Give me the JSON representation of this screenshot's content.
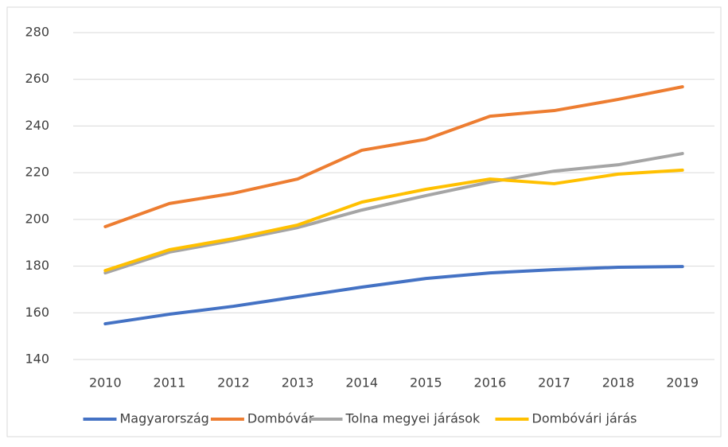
{
  "chart_data": {
    "type": "line",
    "x": [
      "2010",
      "2011",
      "2012",
      "2013",
      "2014",
      "2015",
      "2016",
      "2017",
      "2018",
      "2019"
    ],
    "series": [
      {
        "name": "Magyarország",
        "color": "#4472c4",
        "values": [
          155.3,
          159.4,
          162.8,
          166.9,
          171,
          174.7,
          177.1,
          178.5,
          179.5,
          179.8
        ]
      },
      {
        "name": "Dombóvár",
        "color": "#ed7d31",
        "values": [
          196.9,
          206.8,
          211.2,
          217.3,
          229.6,
          234.3,
          244.2,
          246.6,
          251.4,
          256.8
        ]
      },
      {
        "name": "Tolna megyei járások",
        "color": "#a5a5a5",
        "values": [
          177.1,
          186,
          191,
          196.5,
          204,
          210.2,
          216,
          220.7,
          223.4,
          228.2
        ]
      },
      {
        "name": "Dombóvári járás",
        "color": "#ffc000",
        "values": [
          178.1,
          187,
          191.8,
          197.6,
          207.4,
          212.9,
          217.3,
          215.3,
          219.4,
          221.1
        ]
      }
    ],
    "ylim": [
      140,
      280
    ],
    "yticks": [
      140,
      160,
      180,
      200,
      220,
      240,
      260,
      280
    ],
    "grid": true,
    "legend": "bottom"
  }
}
